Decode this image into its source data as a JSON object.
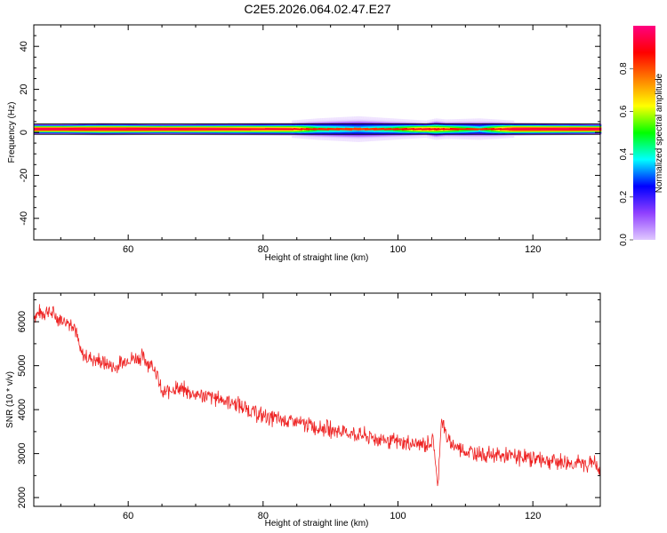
{
  "figure": {
    "title": "C2E5.2026.064.02.47.E27"
  },
  "chart_data": [
    {
      "type": "heatmap",
      "xlabel": "Height of straight line (km)",
      "ylabel": "Frequency (Hz)",
      "xlim": [
        46,
        130
      ],
      "ylim": [
        -50,
        50
      ],
      "x_ticks": [
        60,
        80,
        100,
        120
      ],
      "y_ticks": [
        -40,
        -20,
        0,
        20,
        40
      ],
      "band_center_hz": 1.5,
      "band_profile": [
        {
          "x": 46,
          "halfwidth": 2.5,
          "peak": 0.95
        },
        {
          "x": 50,
          "halfwidth": 2.5,
          "peak": 0.95
        },
        {
          "x": 56,
          "halfwidth": 2.8,
          "peak": 0.93
        },
        {
          "x": 65,
          "halfwidth": 2.5,
          "peak": 0.95
        },
        {
          "x": 84,
          "halfwidth": 3.0,
          "peak": 0.8
        },
        {
          "x": 88,
          "halfwidth": 4.0,
          "peak": 0.55
        },
        {
          "x": 94,
          "halfwidth": 5.0,
          "peak": 0.45
        },
        {
          "x": 99,
          "halfwidth": 4.0,
          "peak": 0.55
        },
        {
          "x": 104,
          "halfwidth": 3.0,
          "peak": 0.8
        },
        {
          "x": 105.5,
          "halfwidth": 4.0,
          "peak": 0.7
        },
        {
          "x": 107,
          "halfwidth": 3.5,
          "peak": 0.7
        },
        {
          "x": 112,
          "halfwidth": 4.0,
          "peak": 0.5
        },
        {
          "x": 117,
          "halfwidth": 3.0,
          "peak": 0.9
        },
        {
          "x": 130,
          "halfwidth": 2.5,
          "peak": 0.95
        }
      ],
      "colorbar": {
        "label": "Normalized spectral amplitude",
        "ticks": [
          0.0,
          0.2,
          0.4,
          0.6,
          0.8
        ],
        "tick_labels": [
          "0.0",
          "0.2",
          "0.4",
          "0.6",
          "0.8"
        ],
        "range": [
          0,
          1
        ],
        "colors": [
          "#ffffff",
          "#e0c8ff",
          "#9040ff",
          "#0000ff",
          "#00ffff",
          "#00ff00",
          "#ffff00",
          "#ff8000",
          "#ff0000",
          "#ff0080"
        ]
      }
    },
    {
      "type": "line",
      "xlabel": "Height of straight line (km)",
      "ylabel": "SNR (10 * v/v)",
      "xlim": [
        46,
        130
      ],
      "ylim": [
        1800,
        6650
      ],
      "x_ticks": [
        60,
        80,
        100,
        120
      ],
      "y_ticks": [
        2000,
        3000,
        4000,
        5000,
        6000
      ],
      "series": [
        {
          "color": "#ee2222",
          "trend": [
            {
              "x": 46,
              "y": 6150
            },
            {
              "x": 48,
              "y": 6250
            },
            {
              "x": 50,
              "y": 6050
            },
            {
              "x": 52,
              "y": 5950
            },
            {
              "x": 53,
              "y": 5250
            },
            {
              "x": 55,
              "y": 5150
            },
            {
              "x": 58,
              "y": 4950
            },
            {
              "x": 60,
              "y": 5150
            },
            {
              "x": 62,
              "y": 5200
            },
            {
              "x": 64,
              "y": 4950
            },
            {
              "x": 65,
              "y": 4350
            },
            {
              "x": 67,
              "y": 4500
            },
            {
              "x": 70,
              "y": 4350
            },
            {
              "x": 75,
              "y": 4200
            },
            {
              "x": 80,
              "y": 3850
            },
            {
              "x": 85,
              "y": 3700
            },
            {
              "x": 90,
              "y": 3550
            },
            {
              "x": 95,
              "y": 3400
            },
            {
              "x": 100,
              "y": 3250
            },
            {
              "x": 104,
              "y": 3200
            },
            {
              "x": 105.3,
              "y": 3300
            },
            {
              "x": 105.9,
              "y": 2150
            },
            {
              "x": 106.4,
              "y": 3800
            },
            {
              "x": 107.5,
              "y": 3250
            },
            {
              "x": 110,
              "y": 3050
            },
            {
              "x": 115,
              "y": 2950
            },
            {
              "x": 120,
              "y": 2900
            },
            {
              "x": 125,
              "y": 2800
            },
            {
              "x": 128,
              "y": 2750
            },
            {
              "x": 129,
              "y": 2850
            },
            {
              "x": 130,
              "y": 2500
            }
          ],
          "noise_amplitude": 160,
          "samples": 1100
        }
      ]
    }
  ]
}
